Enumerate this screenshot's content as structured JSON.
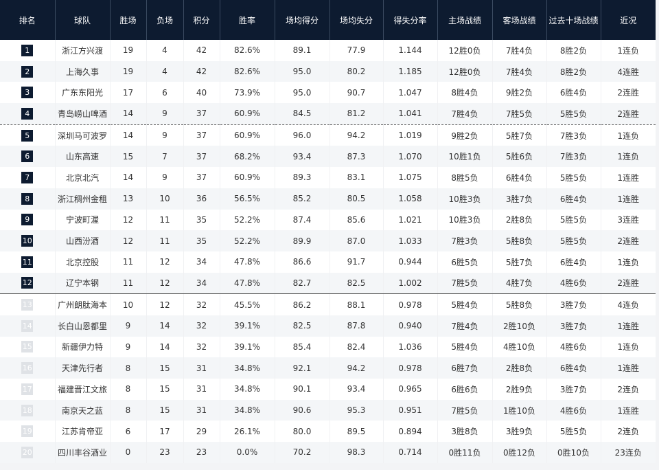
{
  "table": {
    "header": [
      "排名",
      "球队",
      "胜场",
      "负场",
      "积分",
      "胜率",
      "场均得分",
      "场均失分",
      "得失分率",
      "主场战绩",
      "客场战绩",
      "过去十场战绩",
      "近况"
    ],
    "rows": [
      [
        "1",
        "浙江方兴渡",
        "19",
        "4",
        "42",
        "82.6%",
        "89.1",
        "77.9",
        "1.144",
        "12胜0负",
        "7胜4负",
        "8胜2负",
        "1连负"
      ],
      [
        "2",
        "上海久事",
        "19",
        "4",
        "42",
        "82.6%",
        "95.0",
        "80.2",
        "1.185",
        "12胜0负",
        "7胜4负",
        "8胜2负",
        "4连胜"
      ],
      [
        "3",
        "广东东阳光",
        "17",
        "6",
        "40",
        "73.9%",
        "95.0",
        "90.7",
        "1.047",
        "8胜4负",
        "9胜2负",
        "6胜4负",
        "2连胜"
      ],
      [
        "4",
        "青岛崂山啤酒",
        "14",
        "9",
        "37",
        "60.9%",
        "84.5",
        "81.2",
        "1.041",
        "7胜4负",
        "7胜5负",
        "5胜5负",
        "2连胜"
      ],
      [
        "5",
        "深圳马可波罗",
        "14",
        "9",
        "37",
        "60.9%",
        "96.0",
        "94.2",
        "1.019",
        "9胜2负",
        "5胜7负",
        "7胜3负",
        "1连负"
      ],
      [
        "6",
        "山东高速",
        "15",
        "7",
        "37",
        "68.2%",
        "93.4",
        "87.3",
        "1.070",
        "10胜1负",
        "5胜6负",
        "7胜3负",
        "1连负"
      ],
      [
        "7",
        "北京北汽",
        "14",
        "9",
        "37",
        "60.9%",
        "89.3",
        "83.1",
        "1.075",
        "8胜5负",
        "6胜4负",
        "5胜5负",
        "1连胜"
      ],
      [
        "8",
        "浙江稠州金租",
        "13",
        "10",
        "36",
        "56.5%",
        "85.2",
        "80.5",
        "1.058",
        "10胜3负",
        "3胜7负",
        "6胜4负",
        "1连胜"
      ],
      [
        "9",
        "宁波町渥",
        "12",
        "11",
        "35",
        "52.2%",
        "87.4",
        "85.6",
        "1.021",
        "10胜3负",
        "2胜8负",
        "5胜5负",
        "3连胜"
      ],
      [
        "10",
        "山西汾酒",
        "12",
        "11",
        "35",
        "52.2%",
        "89.9",
        "87.0",
        "1.033",
        "7胜3负",
        "5胜8负",
        "5胜5负",
        "2连胜"
      ],
      [
        "11",
        "北京控股",
        "11",
        "12",
        "34",
        "47.8%",
        "86.6",
        "91.7",
        "0.944",
        "6胜5负",
        "5胜7负",
        "6胜4负",
        "1连负"
      ],
      [
        "12",
        "辽宁本钢",
        "11",
        "12",
        "34",
        "47.8%",
        "82.7",
        "82.5",
        "1.002",
        "7胜5负",
        "4胜7负",
        "4胜6负",
        "2连胜"
      ],
      [
        "13",
        "广州朗肽海本",
        "10",
        "12",
        "32",
        "45.5%",
        "86.2",
        "88.1",
        "0.978",
        "5胜4负",
        "5胜8负",
        "3胜7负",
        "4连负"
      ],
      [
        "14",
        "长白山恩都里",
        "9",
        "14",
        "32",
        "39.1%",
        "82.5",
        "87.8",
        "0.940",
        "7胜4负",
        "2胜10负",
        "3胜7负",
        "1连胜"
      ],
      [
        "15",
        "新疆伊力特",
        "9",
        "14",
        "32",
        "39.1%",
        "85.4",
        "82.4",
        "1.036",
        "5胜4负",
        "4胜10负",
        "4胜6负",
        "1连负"
      ],
      [
        "16",
        "天津先行者",
        "8",
        "15",
        "31",
        "34.8%",
        "92.1",
        "94.2",
        "0.978",
        "6胜7负",
        "2胜8负",
        "6胜4负",
        "1连胜"
      ],
      [
        "17",
        "福建晋江文旅",
        "8",
        "15",
        "31",
        "34.8%",
        "90.1",
        "93.4",
        "0.965",
        "6胜6负",
        "2胜9负",
        "3胜7负",
        "2连负"
      ],
      [
        "18",
        "南京天之蓝",
        "8",
        "15",
        "31",
        "34.8%",
        "90.6",
        "95.3",
        "0.951",
        "7胜5负",
        "1胜10负",
        "4胜6负",
        "1连胜"
      ],
      [
        "19",
        "江苏肯帝亚",
        "6",
        "17",
        "29",
        "26.1%",
        "80.0",
        "89.5",
        "0.894",
        "3胜8负",
        "3胜9负",
        "5胜5负",
        "2连负"
      ],
      [
        "20",
        "四川丰谷酒业",
        "0",
        "23",
        "23",
        "0.0%",
        "70.2",
        "98.3",
        "0.714",
        "0胜11负",
        "0胜12负",
        "0胜10负",
        "23连负"
      ]
    ]
  }
}
